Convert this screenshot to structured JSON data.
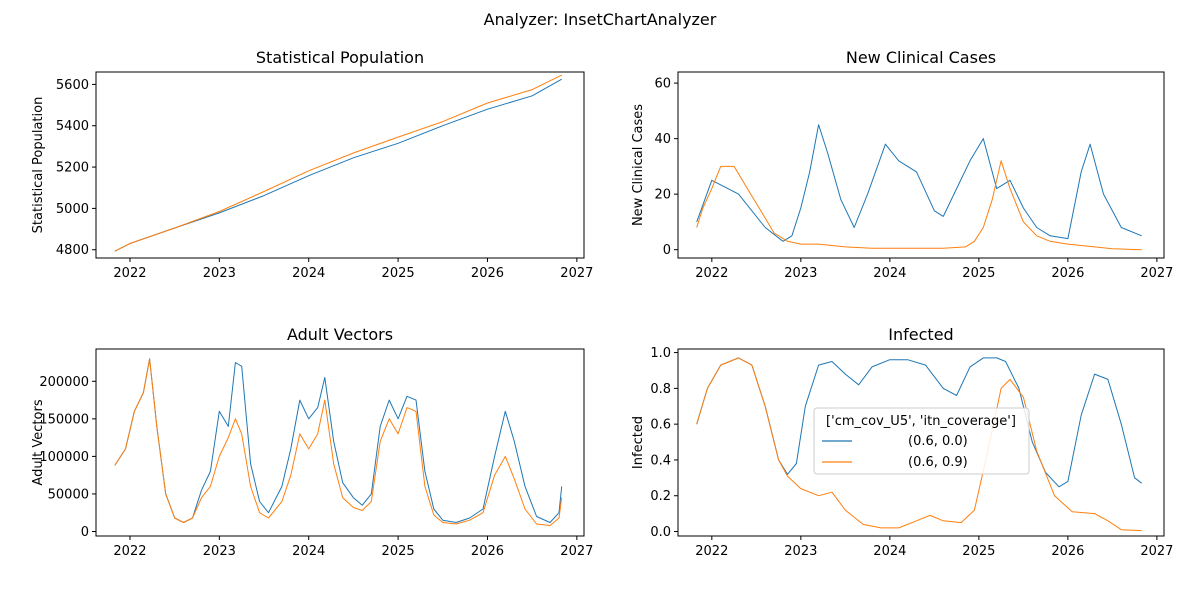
{
  "figure": {
    "suptitle": "Analyzer: InsetChartAnalyzer"
  },
  "colors": {
    "series_a": "#1f77b4",
    "series_b": "#ff7f0e"
  },
  "legend": {
    "title": "['cm_cov_U5', 'itn_coverage']",
    "entries": [
      "(0.6, 0.0)",
      "(0.6, 0.9)"
    ]
  },
  "chart_data": [
    {
      "type": "line",
      "title": "Statistical Population",
      "ylabel": "Statistical Population",
      "xlabel": "",
      "xlim": [
        2021.62,
        2027.08
      ],
      "ylim": [
        4760,
        5660
      ],
      "xticks": [
        2022,
        2023,
        2024,
        2025,
        2026,
        2027
      ],
      "xtick_labels": [
        "2022",
        "2023",
        "2024",
        "2025",
        "2026",
        "2027"
      ],
      "yticks": [
        4800,
        5000,
        5200,
        5400,
        5600
      ],
      "ytick_labels": [
        "4800",
        "5000",
        "5200",
        "5400",
        "5600"
      ],
      "series": [
        {
          "name": "(0.6, 0.0)",
          "x": [
            2021.83,
            2022.0,
            2022.5,
            2023.0,
            2023.5,
            2024.0,
            2024.5,
            2025.0,
            2025.5,
            2026.0,
            2026.5,
            2026.83
          ],
          "y": [
            4793,
            4830,
            4905,
            4978,
            5062,
            5158,
            5245,
            5315,
            5400,
            5480,
            5545,
            5625
          ]
        },
        {
          "name": "(0.6, 0.9)",
          "x": [
            2021.83,
            2022.0,
            2022.5,
            2023.0,
            2023.5,
            2024.0,
            2024.5,
            2025.0,
            2025.5,
            2026.0,
            2026.5,
            2026.83
          ],
          "y": [
            4793,
            4830,
            4905,
            4985,
            5082,
            5182,
            5268,
            5345,
            5420,
            5510,
            5575,
            5645
          ]
        }
      ]
    },
    {
      "type": "line",
      "title": "New Clinical Cases",
      "ylabel": "New Clinical Cases",
      "xlabel": "",
      "xlim": [
        2021.62,
        2027.08
      ],
      "ylim": [
        -3,
        64
      ],
      "xticks": [
        2022,
        2023,
        2024,
        2025,
        2026,
        2027
      ],
      "xtick_labels": [
        "2022",
        "2023",
        "2024",
        "2025",
        "2026",
        "2027"
      ],
      "yticks": [
        0,
        20,
        40,
        60
      ],
      "ytick_labels": [
        "0",
        "20",
        "40",
        "60"
      ],
      "series": [
        {
          "name": "(0.6, 0.0)",
          "x": [
            2021.83,
            2022.0,
            2022.3,
            2022.6,
            2022.8,
            2022.9,
            2023.0,
            2023.1,
            2023.2,
            2023.3,
            2023.45,
            2023.6,
            2023.75,
            2023.95,
            2024.1,
            2024.3,
            2024.5,
            2024.6,
            2024.75,
            2024.9,
            2025.05,
            2025.2,
            2025.35,
            2025.5,
            2025.65,
            2025.8,
            2026.0,
            2026.15,
            2026.25,
            2026.4,
            2026.6,
            2026.83
          ],
          "y": [
            10,
            25,
            20,
            8,
            3,
            5,
            15,
            28,
            45,
            35,
            18,
            8,
            20,
            38,
            32,
            28,
            14,
            12,
            22,
            32,
            40,
            22,
            25,
            15,
            8,
            5,
            4,
            28,
            38,
            20,
            8,
            5
          ]
        },
        {
          "name": "(0.6, 0.9)",
          "x": [
            2021.83,
            2021.9,
            2022.0,
            2022.1,
            2022.25,
            2022.4,
            2022.55,
            2022.7,
            2022.85,
            2023.0,
            2023.2,
            2023.5,
            2023.8,
            2024.2,
            2024.6,
            2024.85,
            2024.95,
            2025.05,
            2025.15,
            2025.25,
            2025.35,
            2025.5,
            2025.65,
            2025.8,
            2026.0,
            2026.3,
            2026.5,
            2026.83
          ],
          "y": [
            8,
            15,
            22,
            30,
            30,
            22,
            14,
            6,
            3,
            2,
            2,
            1,
            0.5,
            0.5,
            0.5,
            1,
            3,
            8,
            18,
            32,
            22,
            10,
            5,
            3,
            2,
            1,
            0.3,
            0
          ]
        }
      ]
    },
    {
      "type": "line",
      "title": "Adult Vectors",
      "ylabel": "Adult Vectors",
      "xlabel": "",
      "xlim": [
        2021.62,
        2027.08
      ],
      "ylim": [
        -6000,
        243000
      ],
      "xticks": [
        2022,
        2023,
        2024,
        2025,
        2026,
        2027
      ],
      "xtick_labels": [
        "2022",
        "2023",
        "2024",
        "2025",
        "2026",
        "2027"
      ],
      "yticks": [
        0,
        50000,
        100000,
        150000,
        200000
      ],
      "ytick_labels": [
        "0",
        "50000",
        "100000",
        "150000",
        "200000"
      ],
      "series": [
        {
          "name": "(0.6, 0.0)",
          "x": [
            2021.83,
            2021.95,
            2022.05,
            2022.15,
            2022.22,
            2022.3,
            2022.4,
            2022.5,
            2022.6,
            2022.7,
            2022.8,
            2022.9,
            2023.0,
            2023.1,
            2023.18,
            2023.25,
            2023.35,
            2023.45,
            2023.55,
            2023.7,
            2023.8,
            2023.9,
            2024.0,
            2024.1,
            2024.18,
            2024.28,
            2024.38,
            2024.5,
            2024.6,
            2024.7,
            2024.8,
            2024.9,
            2025.0,
            2025.1,
            2025.2,
            2025.3,
            2025.4,
            2025.5,
            2025.65,
            2025.8,
            2025.95,
            2026.08,
            2026.2,
            2026.3,
            2026.42,
            2026.55,
            2026.7,
            2026.8,
            2026.83
          ],
          "y": [
            88000,
            110000,
            160000,
            185000,
            230000,
            140000,
            50000,
            18000,
            12000,
            18000,
            55000,
            80000,
            160000,
            140000,
            225000,
            220000,
            90000,
            40000,
            25000,
            60000,
            110000,
            175000,
            150000,
            165000,
            205000,
            120000,
            65000,
            45000,
            35000,
            50000,
            140000,
            175000,
            150000,
            180000,
            175000,
            80000,
            30000,
            15000,
            12000,
            18000,
            30000,
            100000,
            160000,
            120000,
            60000,
            20000,
            12000,
            25000,
            60000
          ]
        },
        {
          "name": "(0.6, 0.9)",
          "x": [
            2021.83,
            2021.95,
            2022.05,
            2022.15,
            2022.22,
            2022.3,
            2022.4,
            2022.5,
            2022.6,
            2022.7,
            2022.8,
            2022.9,
            2023.0,
            2023.1,
            2023.18,
            2023.25,
            2023.35,
            2023.45,
            2023.55,
            2023.7,
            2023.8,
            2023.9,
            2024.0,
            2024.1,
            2024.18,
            2024.28,
            2024.38,
            2024.5,
            2024.6,
            2024.7,
            2024.8,
            2024.9,
            2025.0,
            2025.1,
            2025.2,
            2025.3,
            2025.4,
            2025.5,
            2025.65,
            2025.8,
            2025.95,
            2026.08,
            2026.2,
            2026.3,
            2026.42,
            2026.55,
            2026.7,
            2026.8,
            2026.83
          ],
          "y": [
            88000,
            110000,
            160000,
            185000,
            230000,
            140000,
            50000,
            18000,
            12000,
            18000,
            45000,
            60000,
            100000,
            125000,
            150000,
            130000,
            60000,
            25000,
            18000,
            40000,
            75000,
            130000,
            110000,
            130000,
            175000,
            90000,
            45000,
            32000,
            28000,
            40000,
            120000,
            150000,
            130000,
            165000,
            160000,
            60000,
            22000,
            12000,
            10000,
            15000,
            25000,
            75000,
            100000,
            70000,
            30000,
            10000,
            8000,
            18000,
            45000
          ]
        }
      ]
    },
    {
      "type": "line",
      "title": "Infected",
      "ylabel": "Infected",
      "xlabel": "",
      "xlim": [
        2021.62,
        2027.08
      ],
      "ylim": [
        -0.025,
        1.02
      ],
      "xticks": [
        2022,
        2023,
        2024,
        2025,
        2026,
        2027
      ],
      "xtick_labels": [
        "2022",
        "2023",
        "2024",
        "2025",
        "2026",
        "2027"
      ],
      "yticks": [
        0.0,
        0.2,
        0.4,
        0.6,
        0.8,
        1.0
      ],
      "ytick_labels": [
        "0.0",
        "0.2",
        "0.4",
        "0.6",
        "0.8",
        "1.0"
      ],
      "series": [
        {
          "name": "(0.6, 0.0)",
          "x": [
            2021.83,
            2021.95,
            2022.1,
            2022.3,
            2022.45,
            2022.6,
            2022.75,
            2022.85,
            2022.95,
            2023.05,
            2023.2,
            2023.35,
            2023.5,
            2023.65,
            2023.8,
            2024.0,
            2024.2,
            2024.4,
            2024.6,
            2024.75,
            2024.9,
            2025.05,
            2025.2,
            2025.3,
            2025.45,
            2025.6,
            2025.75,
            2025.9,
            2026.0,
            2026.15,
            2026.3,
            2026.45,
            2026.6,
            2026.75,
            2026.83
          ],
          "y": [
            0.6,
            0.8,
            0.93,
            0.97,
            0.93,
            0.7,
            0.4,
            0.32,
            0.38,
            0.7,
            0.93,
            0.95,
            0.88,
            0.82,
            0.92,
            0.96,
            0.96,
            0.93,
            0.8,
            0.76,
            0.92,
            0.97,
            0.97,
            0.95,
            0.8,
            0.5,
            0.33,
            0.25,
            0.28,
            0.65,
            0.88,
            0.85,
            0.6,
            0.3,
            0.27
          ]
        },
        {
          "name": "(0.6, 0.9)",
          "x": [
            2021.83,
            2021.95,
            2022.1,
            2022.3,
            2022.45,
            2022.6,
            2022.75,
            2022.85,
            2023.0,
            2023.2,
            2023.35,
            2023.5,
            2023.7,
            2023.9,
            2024.1,
            2024.3,
            2024.45,
            2024.6,
            2024.8,
            2024.95,
            2025.1,
            2025.25,
            2025.35,
            2025.5,
            2025.65,
            2025.85,
            2026.05,
            2026.3,
            2026.45,
            2026.6,
            2026.83
          ],
          "y": [
            0.6,
            0.8,
            0.93,
            0.97,
            0.93,
            0.7,
            0.4,
            0.31,
            0.24,
            0.2,
            0.22,
            0.12,
            0.04,
            0.02,
            0.02,
            0.06,
            0.09,
            0.06,
            0.05,
            0.12,
            0.45,
            0.8,
            0.85,
            0.75,
            0.45,
            0.2,
            0.11,
            0.1,
            0.06,
            0.01,
            0.005
          ]
        }
      ]
    }
  ]
}
